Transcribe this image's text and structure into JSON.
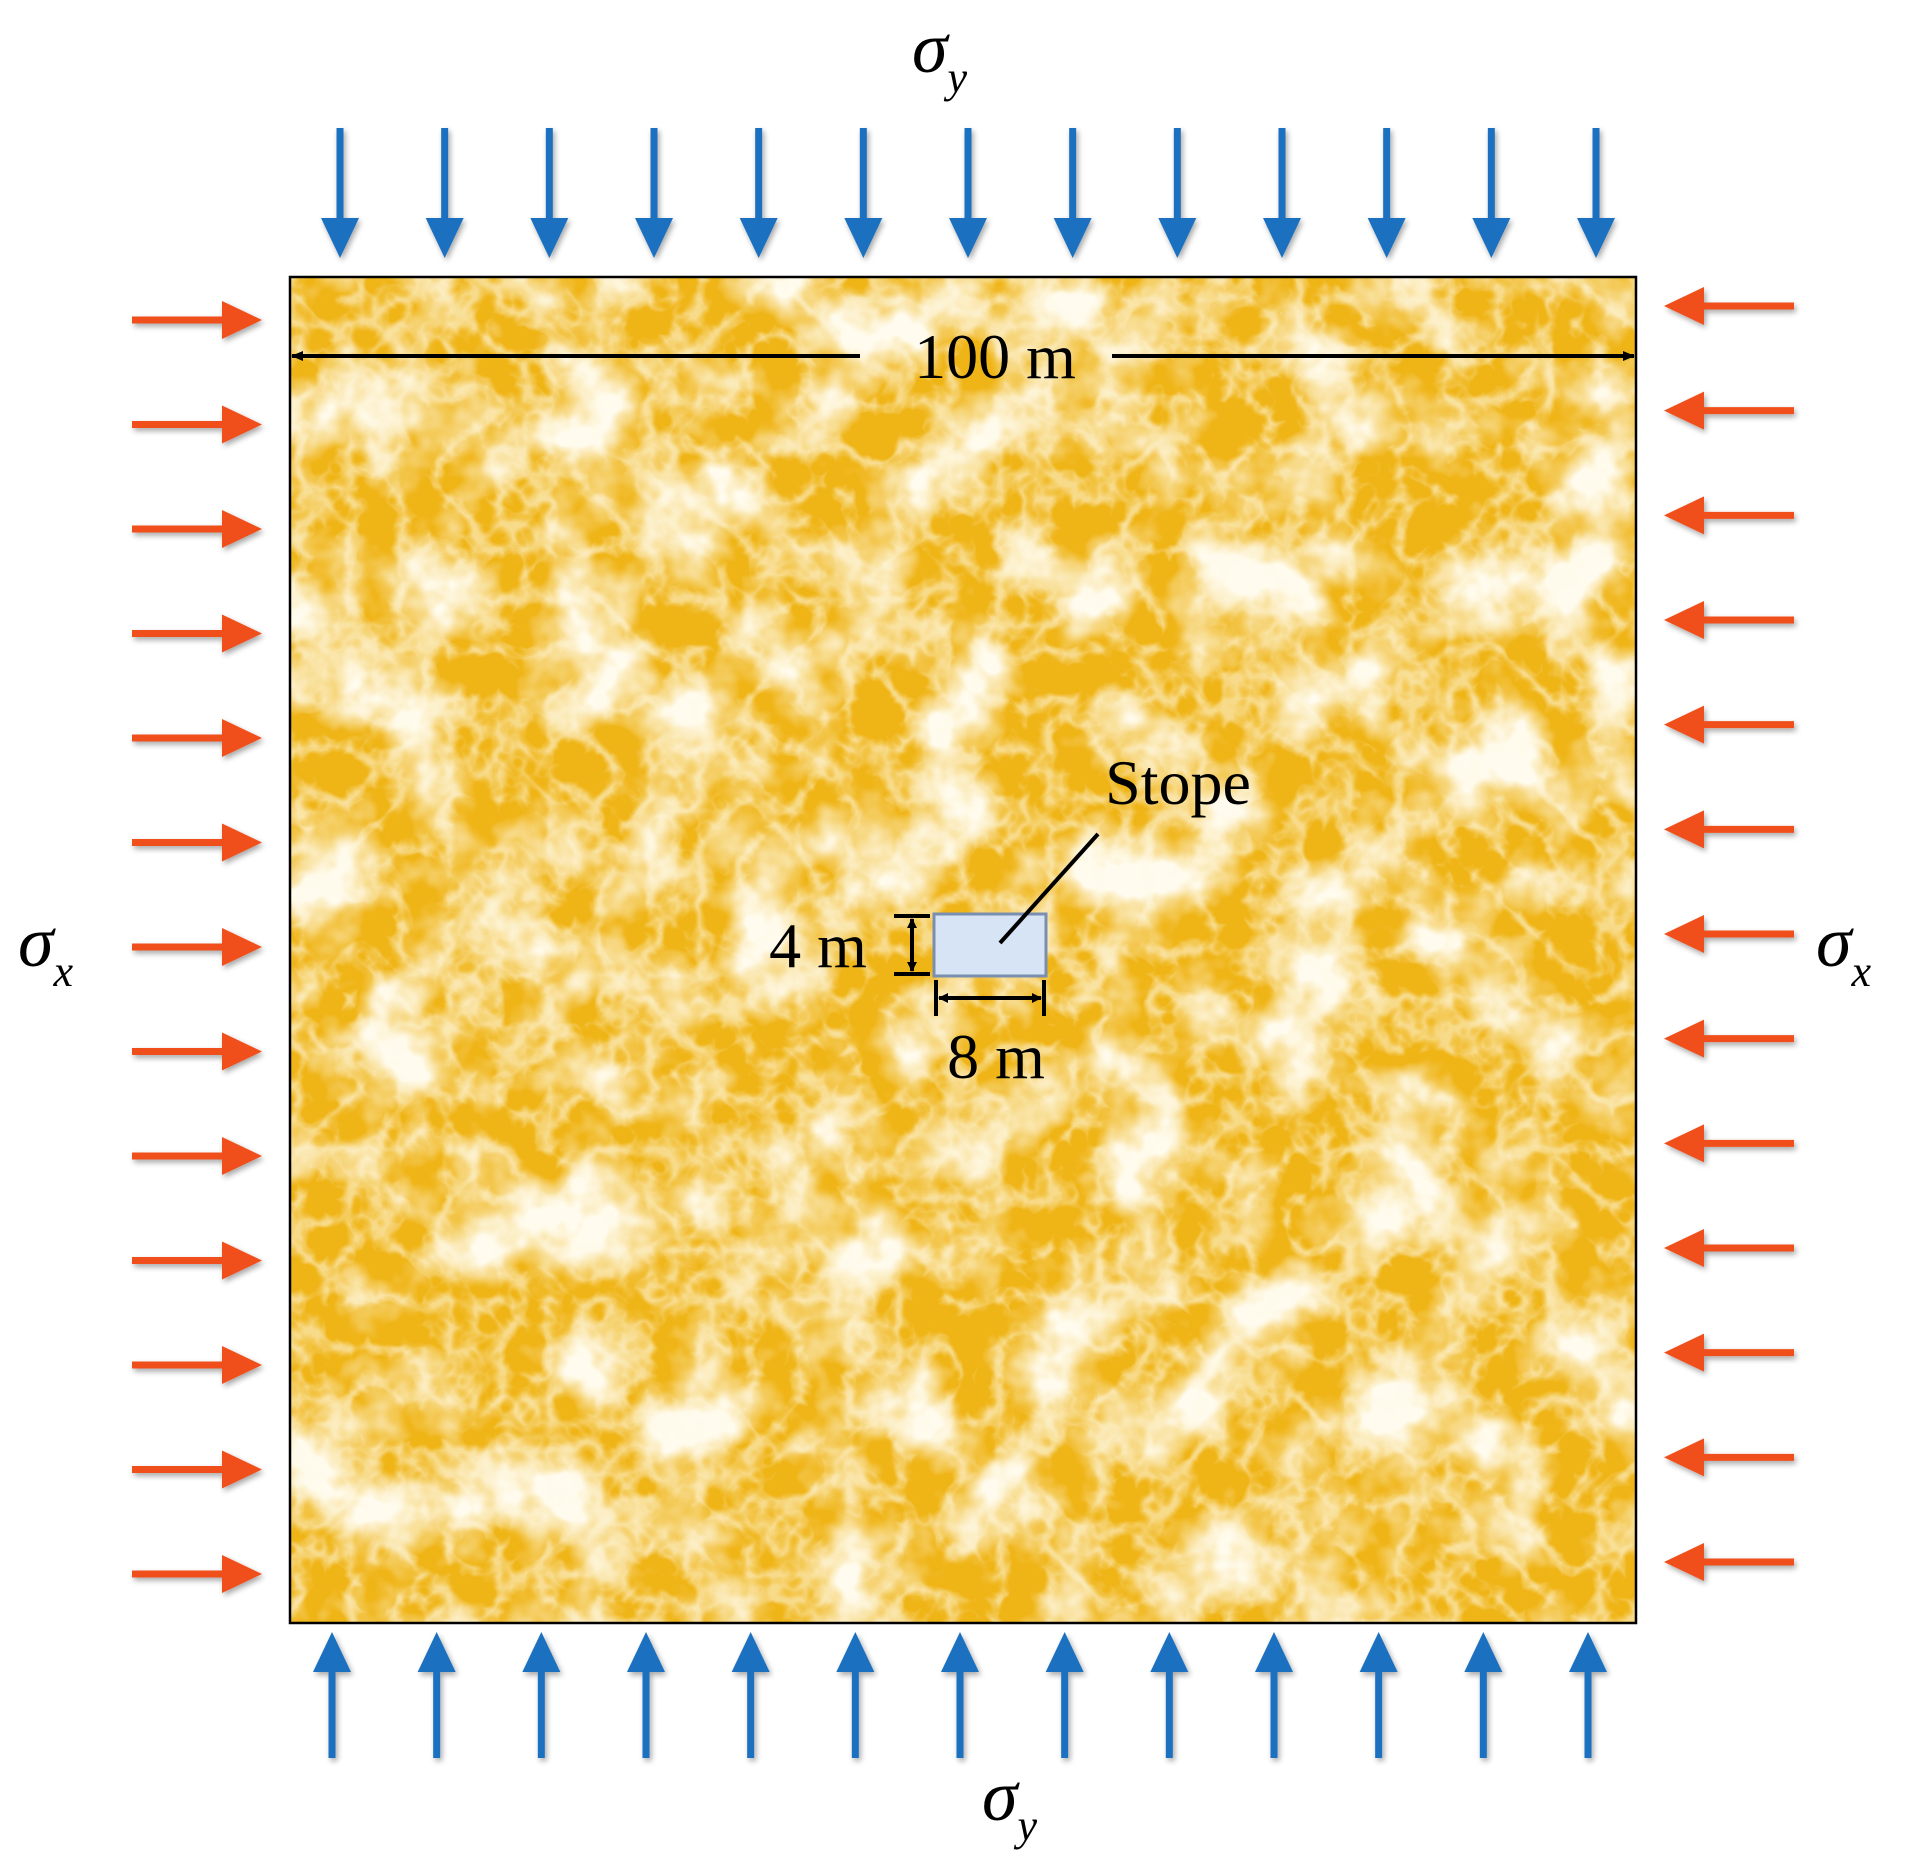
{
  "labels": {
    "sigma": "σ",
    "sub_y": "y",
    "sub_x": "x",
    "width_dim": "100 m",
    "stope_label": "Stope",
    "stope_height": "4 m",
    "stope_width": "8 m"
  },
  "load_arrows": {
    "vertical_count_top": 13,
    "vertical_count_bottom": 13,
    "horizontal_count_left": 13,
    "horizontal_count_right": 13
  },
  "colors": {
    "sigma_y_arrows": "#1a70c0",
    "sigma_x_arrows": "#f0501e",
    "rock_base": "#f2b91e",
    "rock_veins": "#fff8df",
    "stope_fill": "#d6e4f5",
    "stope_stroke": "#7a8fb0",
    "ink": "#000000"
  }
}
